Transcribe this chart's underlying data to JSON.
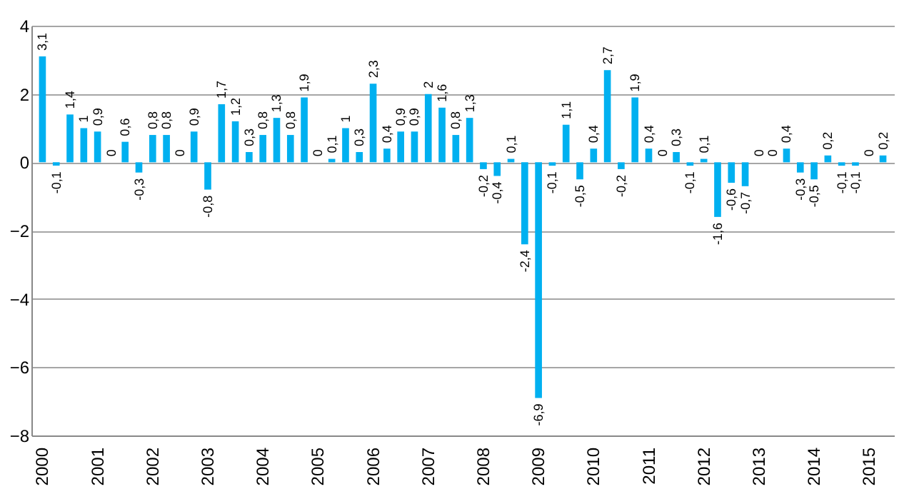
{
  "chart_data": {
    "type": "bar",
    "categories": [
      "2000",
      null,
      null,
      null,
      "2001",
      null,
      null,
      null,
      "2002",
      null,
      null,
      null,
      "2003",
      null,
      null,
      null,
      "2004",
      null,
      null,
      null,
      "2005",
      null,
      null,
      null,
      "2006",
      null,
      null,
      null,
      "2007",
      null,
      null,
      null,
      "2008",
      null,
      null,
      null,
      "2009",
      null,
      null,
      null,
      "2010",
      null,
      null,
      null,
      "2011",
      null,
      null,
      null,
      "2012",
      null,
      null,
      null,
      "2013",
      null,
      null,
      null,
      "2014",
      null,
      null,
      null,
      "2015",
      null
    ],
    "values": [
      3.1,
      -0.1,
      1.4,
      1,
      0.9,
      0,
      0.6,
      -0.3,
      0.8,
      0.8,
      0,
      0.9,
      -0.8,
      1.7,
      1.2,
      0.3,
      0.8,
      1.3,
      0.8,
      1.9,
      0,
      0.1,
      1,
      0.3,
      2.3,
      0.4,
      0.9,
      0.9,
      2,
      1.6,
      0.8,
      1.3,
      -0.2,
      -0.4,
      0.1,
      -2.4,
      -6.9,
      -0.1,
      1.1,
      -0.5,
      0.4,
      2.7,
      -0.2,
      1.9,
      0.4,
      0,
      0.3,
      -0.1,
      0.1,
      -1.6,
      -0.6,
      -0.7,
      0,
      0,
      0.4,
      -0.3,
      -0.5,
      0.2,
      -0.1,
      -0.1,
      0,
      0.2
    ],
    "value_labels": [
      "3,1",
      "-0,1",
      "1,4",
      "1",
      "0,9",
      "0",
      "0,6",
      "-0,3",
      "0,8",
      "0,8",
      "0",
      "0,9",
      "-0,8",
      "1,7",
      "1,2",
      "0,3",
      "0,8",
      "1,3",
      "0,8",
      "1,9",
      "0",
      "0,1",
      "1",
      "0,3",
      "2,3",
      "0,4",
      "0,9",
      "0,9",
      "2",
      "1,6",
      "0,8",
      "1,3",
      "-0,2",
      "-0,4",
      "0,1",
      "-2,4",
      "-6,9",
      "-0,1",
      "1,1",
      "-0,5",
      "0,4",
      "2,7",
      "-0,2",
      "1,9",
      "0,4",
      "0",
      "0,3",
      "-0,1",
      "0,1",
      "-1,6",
      "-0,6",
      "-0,7",
      "0",
      "0",
      "0,4",
      "-0,3",
      "-0,5",
      "0,2",
      "-0,1",
      "-0,1",
      "0",
      "0,2"
    ],
    "color": "#00b0f0",
    "ylim": [
      -8,
      4
    ],
    "yticks": [
      -8,
      -6,
      -4,
      -2,
      0,
      2,
      4
    ],
    "grid": "y"
  }
}
